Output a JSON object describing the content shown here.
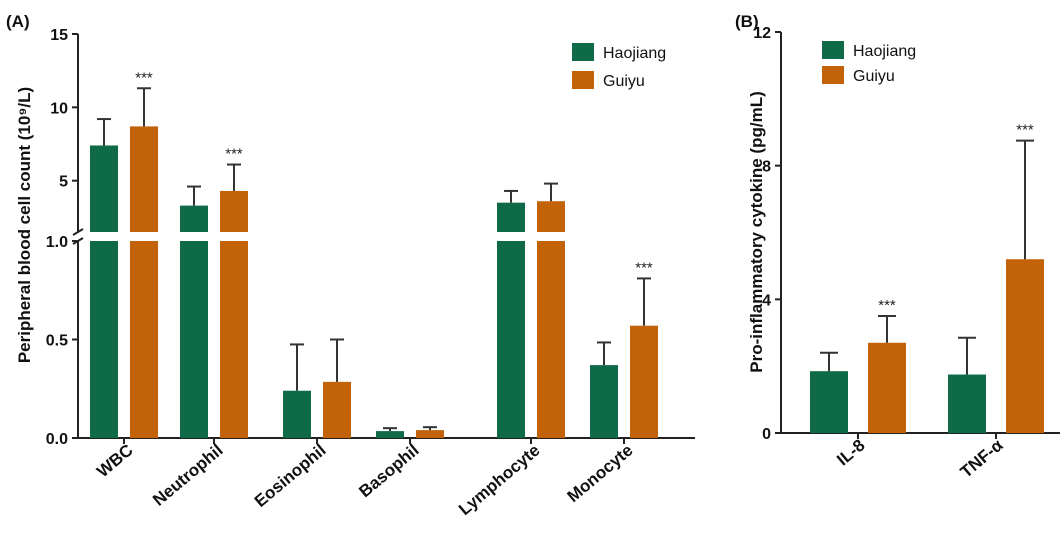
{
  "colors": {
    "Haojiang": "#0f6b47",
    "Guiyu": "#c2630a",
    "axis": "#222222"
  },
  "chart_data": [
    {
      "type": "bar",
      "panel_label": "(A)",
      "ylabel": "Peripheral blood cell count (10⁹/L)",
      "categories": [
        "WBC",
        "Neutrophil",
        "Eosinophil",
        "Basophil",
        "Lymphocyte",
        "Monocyte"
      ],
      "series": [
        {
          "name": "Haojiang",
          "values": [
            7.4,
            3.3,
            0.24,
            0.035,
            3.5,
            0.37
          ],
          "errors": [
            1.8,
            1.3,
            0.235,
            0.015,
            0.8,
            0.115
          ]
        },
        {
          "name": "Guiyu",
          "values": [
            8.7,
            4.3,
            0.285,
            0.04,
            3.6,
            0.57
          ],
          "errors": [
            2.6,
            1.8,
            0.215,
            0.015,
            1.2,
            0.24
          ]
        }
      ],
      "significance": [
        {
          "series": "Guiyu",
          "category": "WBC",
          "label": "***"
        },
        {
          "series": "Guiyu",
          "category": "Neutrophil",
          "label": "***"
        },
        {
          "series": "Guiyu",
          "category": "Monocyte",
          "label": "***"
        }
      ],
      "y_axis": {
        "broken": true,
        "lower_segment": {
          "range": [
            0,
            1.0
          ],
          "ticks": [
            "0.0",
            "0.5",
            "1.0"
          ]
        },
        "upper_segment": {
          "range": [
            1.5,
            15
          ],
          "ticks": [
            "5",
            "10",
            "15"
          ]
        }
      },
      "legend": {
        "placement": "top-right"
      },
      "grid": false
    },
    {
      "type": "bar",
      "panel_label": "(B)",
      "ylabel": "Pro-inflammatory cytokine (pg/mL)",
      "categories": [
        "IL-8",
        "TNF-α"
      ],
      "series": [
        {
          "name": "Haojiang",
          "values": [
            1.85,
            1.75
          ],
          "errors": [
            0.55,
            1.1
          ]
        },
        {
          "name": "Guiyu",
          "values": [
            2.7,
            5.2
          ],
          "errors": [
            0.8,
            3.55
          ]
        }
      ],
      "significance": [
        {
          "series": "Guiyu",
          "category": "IL-8",
          "label": "***"
        },
        {
          "series": "Guiyu",
          "category": "TNF-α",
          "label": "***"
        }
      ],
      "ylim": [
        0,
        12
      ],
      "yticks": [
        "0",
        "4",
        "8",
        "12"
      ],
      "legend": {
        "placement": "top-left"
      },
      "grid": false
    }
  ]
}
